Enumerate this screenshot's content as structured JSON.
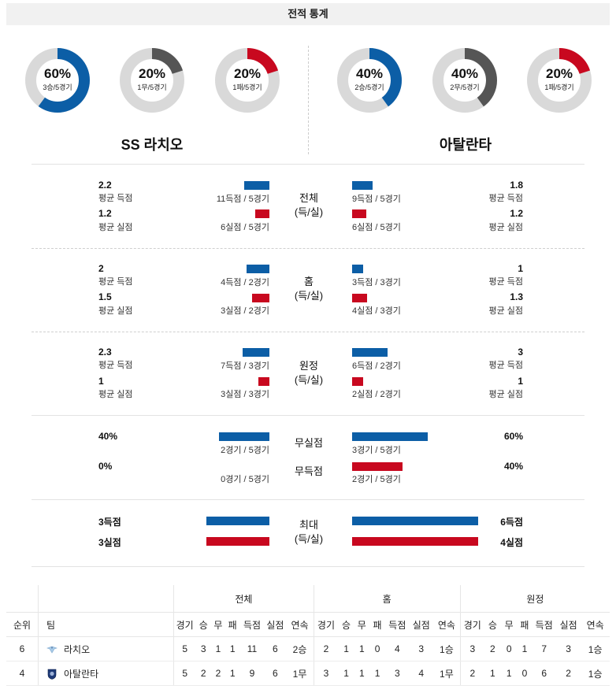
{
  "title": "전적 통계",
  "colors": {
    "blue": "#0c5ea6",
    "red": "#c8081f",
    "gray": "#555555",
    "track": "#d9d9d9"
  },
  "teams": {
    "left": {
      "name": "SS 라치오",
      "donuts": [
        {
          "pct": "60%",
          "sub": "3승/5경기",
          "value": 0.6,
          "color": "blue"
        },
        {
          "pct": "20%",
          "sub": "1무/5경기",
          "value": 0.2,
          "color": "gray"
        },
        {
          "pct": "20%",
          "sub": "1패/5경기",
          "value": 0.2,
          "color": "red"
        }
      ]
    },
    "right": {
      "name": "아탈란타",
      "donuts": [
        {
          "pct": "40%",
          "sub": "2승/5경기",
          "value": 0.4,
          "color": "blue"
        },
        {
          "pct": "40%",
          "sub": "2무/5경기",
          "value": 0.4,
          "color": "gray"
        },
        {
          "pct": "20%",
          "sub": "1패/5경기",
          "value": 0.2,
          "color": "red"
        }
      ]
    }
  },
  "sections": [
    {
      "center": [
        "전체",
        "(득/실)"
      ],
      "rows": [
        {
          "lv": "2.2",
          "ll": "평균 득점",
          "lcap": "11득점 / 5경기",
          "lbar": 0.2,
          "rv": "1.8",
          "rl": "평균 득점",
          "rcap": "9득점 / 5경기",
          "rbar": 0.16,
          "color": "blue"
        },
        {
          "lv": "1.2",
          "ll": "평균 실점",
          "lcap": "6실점 / 5경기",
          "lbar": 0.11,
          "rv": "1.2",
          "rl": "평균 실점",
          "rcap": "6실점 / 5경기",
          "rbar": 0.11,
          "color": "red"
        }
      ]
    },
    {
      "center": [
        "홈",
        "(득/실)"
      ],
      "rows": [
        {
          "lv": "2",
          "ll": "평균 득점",
          "lcap": "4득점 / 2경기",
          "lbar": 0.18,
          "rv": "1",
          "rl": "평균 득점",
          "rcap": "3득점 / 3경기",
          "rbar": 0.09,
          "color": "blue"
        },
        {
          "lv": "1.5",
          "ll": "평균 실점",
          "lcap": "3실점 / 2경기",
          "lbar": 0.14,
          "rv": "1.3",
          "rl": "평균 실점",
          "rcap": "4실점 / 3경기",
          "rbar": 0.12,
          "color": "red"
        }
      ]
    },
    {
      "center": [
        "원정",
        "(득/실)"
      ],
      "rows": [
        {
          "lv": "2.3",
          "ll": "평균 득점",
          "lcap": "7득점 / 3경기",
          "lbar": 0.21,
          "rv": "3",
          "rl": "평균 득점",
          "rcap": "6득점 / 2경기",
          "rbar": 0.28,
          "color": "blue"
        },
        {
          "lv": "1",
          "ll": "평균 실점",
          "lcap": "3실점 / 3경기",
          "lbar": 0.09,
          "rv": "1",
          "rl": "평균 실점",
          "rcap": "2실점 / 2경기",
          "rbar": 0.09,
          "color": "red"
        }
      ]
    }
  ],
  "cleansheet": {
    "rows": [
      {
        "center": "무실점",
        "lv": "40%",
        "lcap": "2경기 / 5경기",
        "lbar": 0.4,
        "rv": "60%",
        "rcap": "3경기 / 5경기",
        "rbar": 0.6,
        "color": "blue"
      },
      {
        "center": "무득점",
        "lv": "0%",
        "lcap": "0경기 / 5경기",
        "lbar": 0.0,
        "rv": "40%",
        "rcap": "2경기 / 5경기",
        "rbar": 0.4,
        "color": "red"
      }
    ]
  },
  "max": {
    "center": [
      "최대",
      "(득/실)"
    ],
    "rows": [
      {
        "lv": "3득점",
        "lbar": 0.5,
        "rv": "6득점",
        "rbar": 1.0,
        "color": "blue"
      },
      {
        "lv": "3실점",
        "lbar": 0.5,
        "rv": "4실점",
        "rbar": 1.0,
        "color": "red"
      }
    ]
  },
  "standings": {
    "groups": [
      "전체",
      "홈",
      "원정"
    ],
    "rank_header": "순위",
    "team_header": "팀",
    "cols": [
      "경기",
      "승",
      "무",
      "패",
      "득점",
      "실점",
      "연속"
    ],
    "rows": [
      {
        "rank": "6",
        "team": "라치오",
        "crest": "lazio-eagle-icon",
        "total": [
          "5",
          "3",
          "1",
          "1",
          "11",
          "6",
          "2승"
        ],
        "home": [
          "2",
          "1",
          "1",
          "0",
          "4",
          "3",
          "1승"
        ],
        "away": [
          "3",
          "2",
          "0",
          "1",
          "7",
          "3",
          "1승"
        ]
      },
      {
        "rank": "4",
        "team": "아탈란타",
        "crest": "atalanta-crest-icon",
        "total": [
          "5",
          "2",
          "2",
          "1",
          "9",
          "6",
          "1무"
        ],
        "home": [
          "3",
          "1",
          "1",
          "1",
          "3",
          "4",
          "1무"
        ],
        "away": [
          "2",
          "1",
          "1",
          "0",
          "6",
          "2",
          "1승"
        ]
      }
    ]
  }
}
